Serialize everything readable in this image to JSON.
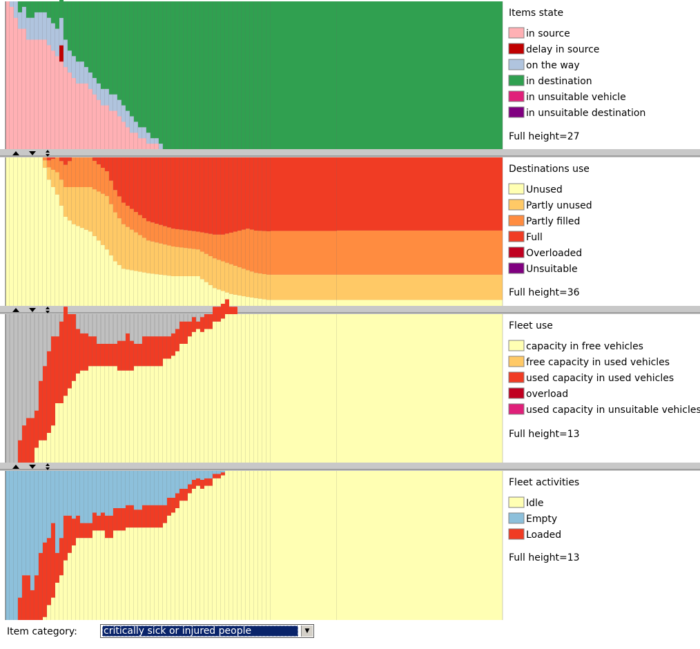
{
  "chart_data": [
    {
      "type": "area",
      "title": "Items state",
      "note": "Full height=27",
      "series": [
        {
          "name": "in source",
          "color": "#ffb0b4"
        },
        {
          "name": "delay in source",
          "color": "#c00000"
        },
        {
          "name": "on the way",
          "color": "#b0c4de"
        },
        {
          "name": "in destination",
          "color": "#30a050"
        },
        {
          "name": "in unsuitable vehicle",
          "color": "#e0207a"
        },
        {
          "name": "in unsuitable destination",
          "color": "#800080"
        }
      ]
    },
    {
      "type": "area",
      "title": "Destinations use",
      "note": "Full height=36",
      "series": [
        {
          "name": "Unused",
          "color": "#ffffb3"
        },
        {
          "name": "Partly unused",
          "color": "#ffc966"
        },
        {
          "name": "Partly filled",
          "color": "#ff8c40"
        },
        {
          "name": "Full",
          "color": "#f03c24"
        },
        {
          "name": "Overloaded",
          "color": "#c00020"
        },
        {
          "name": "Unsuitable",
          "color": "#800080"
        }
      ]
    },
    {
      "type": "area",
      "title": "Fleet use",
      "note": "Full height=13",
      "series": [
        {
          "name": "capacity in free vehicles",
          "color": "#ffffb3"
        },
        {
          "name": "free capacity in used vehicles",
          "color": "#ffc966"
        },
        {
          "name": "used capacity in used vehicles",
          "color": "#f03c24"
        },
        {
          "name": "overload",
          "color": "#c00020"
        },
        {
          "name": "used capacity in unsuitable vehicles",
          "color": "#e0207a"
        }
      ]
    },
    {
      "type": "area",
      "title": "Fleet activities",
      "note": "Full height=13",
      "series": [
        {
          "name": "Idle",
          "color": "#ffffb3"
        },
        {
          "name": "Empty",
          "color": "#8dc0db"
        },
        {
          "name": "Loaded",
          "color": "#f03c24"
        }
      ]
    }
  ],
  "controls": {
    "item_category_label": "Item category:",
    "item_category_value": "critically sick or injured people"
  },
  "colors": {
    "background_gray": "#c0c0c0",
    "divider": "#b8b8b8"
  }
}
